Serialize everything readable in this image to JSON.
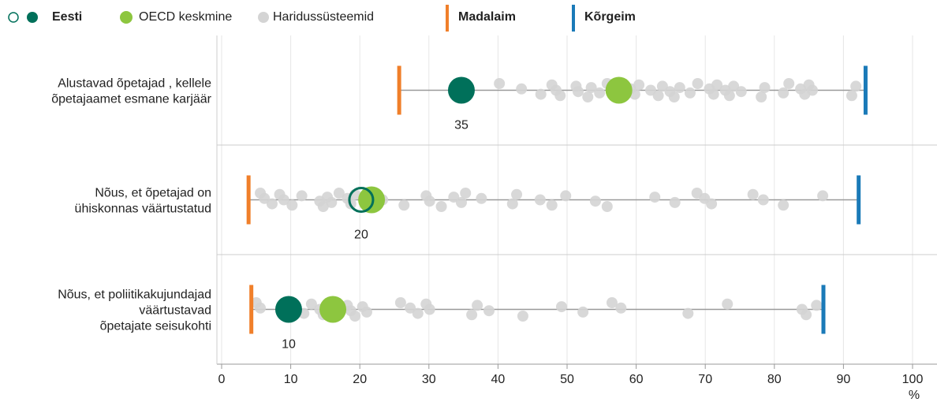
{
  "chart_data": {
    "type": "dot",
    "categories": [
      [
        "Alustavad õpetajad , kellele",
        "õpetajaamet esmane karjäär"
      ],
      [
        "Nõus, et õpetajad on",
        "ühiskonnas väärtustatud"
      ],
      [
        "Nõus, et poliitikakujundajad",
        "väärtustavad",
        "õpetajate seisukohti"
      ]
    ],
    "series": [
      {
        "name": "Eesti",
        "color": "#00705a",
        "values": [
          34.7,
          20.2,
          9.7
        ],
        "value_labels": [
          "35",
          "20",
          "10"
        ],
        "filled": [
          true,
          false,
          true
        ]
      },
      {
        "name": "OECD keskmine",
        "color": "#8dc63f",
        "values": [
          57.5,
          21.7,
          16.1
        ]
      },
      {
        "name": "Haridussüsteemid",
        "color": "#d4d4d4",
        "points": [
          [
            40.2,
            43.4,
            46.2,
            47.8,
            48.4,
            49.0,
            51.3,
            51.6,
            53.0,
            53.5,
            54.7,
            55.8,
            59.2,
            59.8,
            60.4,
            62.1,
            63.2,
            63.8,
            64.9,
            65.5,
            66.3,
            67.8,
            68.9,
            70.6,
            71.2,
            71.7,
            72.9,
            73.5,
            74.1,
            75.2,
            78.1,
            78.6,
            81.3,
            82.1,
            83.8,
            84.4,
            85.0,
            85.5,
            91.2,
            91.8
          ],
          [
            5.6,
            6.2,
            7.3,
            8.4,
            9.0,
            10.2,
            11.6,
            14.2,
            14.7,
            15.3,
            15.9,
            17.0,
            18.2,
            18.7,
            19.3,
            23.3,
            26.4,
            29.6,
            30.1,
            31.8,
            33.6,
            34.7,
            35.3,
            37.6,
            42.1,
            42.7,
            46.1,
            47.8,
            49.8,
            54.1,
            55.8,
            62.7,
            65.6,
            68.8,
            69.9,
            70.9,
            76.9,
            78.4,
            81.3,
            87.0
          ],
          [
            5.0,
            5.6,
            11.9,
            13.0,
            14.2,
            14.7,
            18.2,
            18.7,
            19.3,
            20.4,
            21.0,
            25.9,
            27.3,
            28.4,
            29.6,
            30.1,
            36.2,
            37.0,
            38.7,
            43.6,
            49.2,
            52.3,
            56.5,
            57.8,
            67.5,
            73.2,
            84.0,
            84.6,
            86.1
          ]
        ]
      },
      {
        "name": "Madalaim",
        "color": "#f07f2a",
        "values": [
          25.7,
          3.9,
          4.3
        ]
      },
      {
        "name": "Kõrgeim",
        "color": "#1a7ab8",
        "values": [
          93.2,
          92.2,
          87.1
        ]
      }
    ],
    "xlim": [
      0,
      100
    ],
    "xticks": [
      0,
      10,
      20,
      30,
      40,
      50,
      60,
      70,
      80,
      90,
      100
    ],
    "xlabel": "%",
    "grid": true
  }
}
